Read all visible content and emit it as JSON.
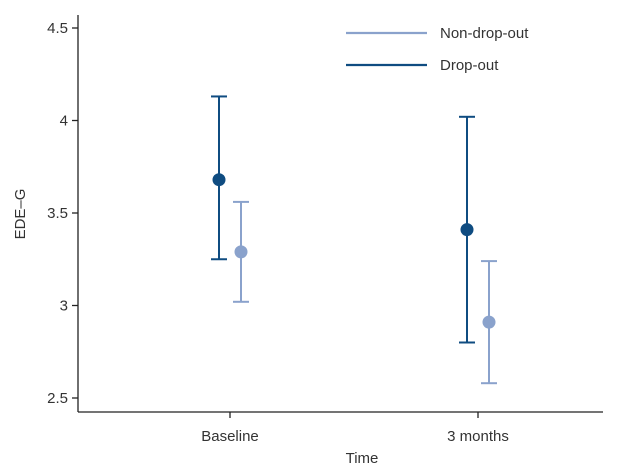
{
  "chart_data": {
    "type": "scatter",
    "title": "",
    "xlabel": "Time",
    "ylabel": "EDE–G",
    "categories": [
      "Baseline",
      "3 months"
    ],
    "ylim": [
      2.45,
      4.55
    ],
    "yticks": [
      "2.5",
      "3",
      "3.5",
      "4",
      "4.5"
    ],
    "ytick_values": [
      2.5,
      3,
      3.5,
      4,
      4.5
    ],
    "grid": false,
    "legend_position": "top-right",
    "series": [
      {
        "name": "Non-drop-out",
        "color": "#8aa2cc",
        "values": [
          3.29,
          2.91
        ],
        "lower": [
          3.02,
          2.58
        ],
        "upper": [
          3.56,
          3.24
        ]
      },
      {
        "name": "Drop-out",
        "color": "#0f4c81",
        "values": [
          3.68,
          3.41
        ],
        "lower": [
          3.25,
          2.8
        ],
        "upper": [
          4.13,
          4.02
        ]
      }
    ]
  }
}
